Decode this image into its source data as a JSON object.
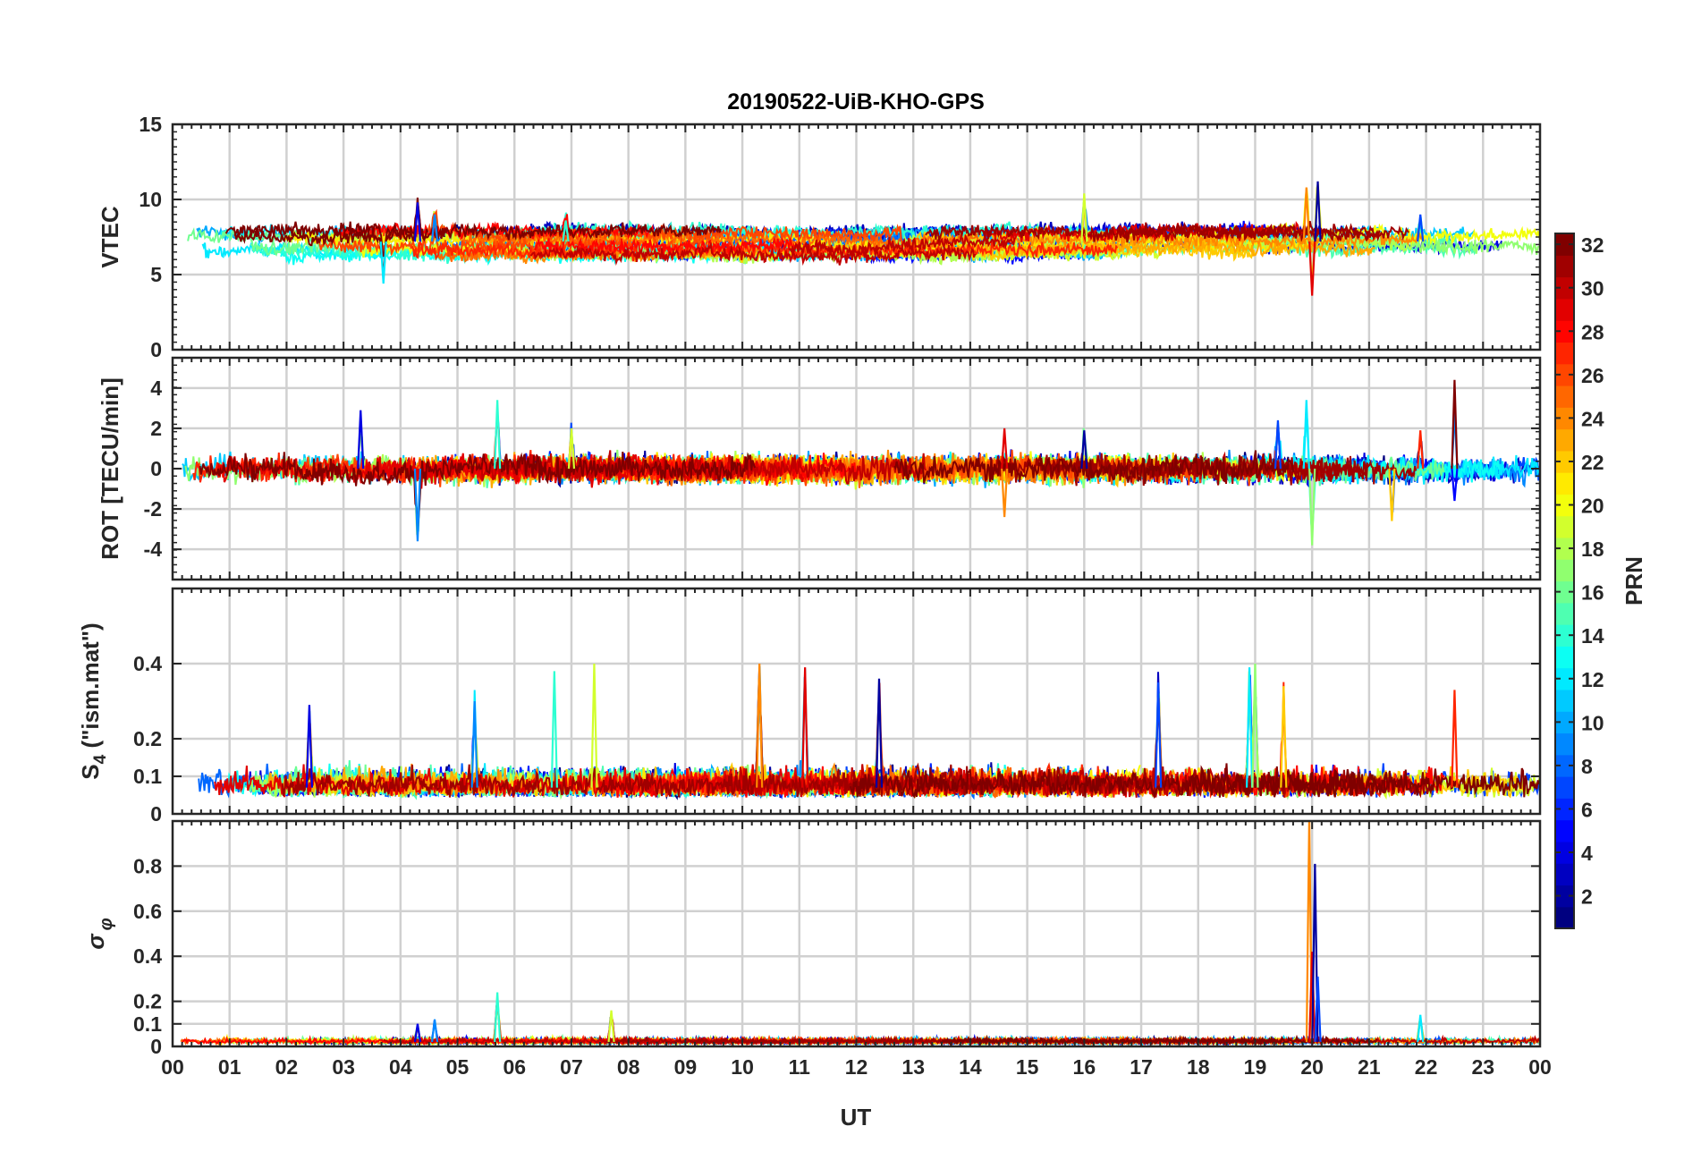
{
  "chart_data": {
    "type": "line",
    "title": "20190522-UiB-KHO-GPS",
    "xlabel": "UT",
    "x_tick_labels": [
      "00",
      "01",
      "02",
      "03",
      "04",
      "05",
      "06",
      "07",
      "08",
      "09",
      "10",
      "11",
      "12",
      "13",
      "14",
      "15",
      "16",
      "17",
      "18",
      "19",
      "20",
      "21",
      "22",
      "23",
      "00"
    ],
    "xlim": [
      0,
      24
    ],
    "grid": true,
    "panels": [
      {
        "id": "vtec",
        "ylabel": "VTEC",
        "ylim": [
          0,
          15
        ],
        "yticks": [
          0,
          5,
          10,
          15
        ],
        "ytick_labels": [
          "0",
          "5",
          "10",
          "15"
        ],
        "minor_ticks_y": true,
        "baseline": 7.2,
        "noise": 0.35,
        "events": [
          {
            "x": 4.3,
            "amp": 2.6
          },
          {
            "x": 4.6,
            "amp": 1.8
          },
          {
            "x": 6.9,
            "amp": 1.4
          },
          {
            "x": 16.0,
            "amp": 3.2
          },
          {
            "x": 19.9,
            "amp": 3.6
          },
          {
            "x": 20.0,
            "amp": -3.6
          },
          {
            "x": 20.1,
            "amp": 4.0
          },
          {
            "x": 21.9,
            "amp": 1.8
          },
          {
            "x": 3.7,
            "amp": -2.8
          }
        ]
      },
      {
        "id": "rot",
        "ylabel": "ROT [TECU/min]",
        "ylim": [
          -5.5,
          5.5
        ],
        "yticks": [
          -4,
          -2,
          0,
          2,
          4
        ],
        "ytick_labels": [
          "-4",
          "-2",
          "0",
          "2",
          "4"
        ],
        "minor_ticks_y": true,
        "baseline": 0,
        "noise": 0.3,
        "events": [
          {
            "x": 3.3,
            "amp": 2.9
          },
          {
            "x": 4.3,
            "amp": -3.6
          },
          {
            "x": 5.7,
            "amp": 3.4
          },
          {
            "x": 7.0,
            "amp": 2.0
          },
          {
            "x": 14.6,
            "amp": -2.4
          },
          {
            "x": 14.6,
            "amp": 2.0
          },
          {
            "x": 16.0,
            "amp": 1.9
          },
          {
            "x": 19.4,
            "amp": 2.4
          },
          {
            "x": 19.9,
            "amp": 3.4
          },
          {
            "x": 20.0,
            "amp": -3.8
          },
          {
            "x": 21.4,
            "amp": -2.6
          },
          {
            "x": 21.9,
            "amp": 1.9
          },
          {
            "x": 22.5,
            "amp": 4.4
          },
          {
            "x": 22.5,
            "amp": -1.6
          }
        ]
      },
      {
        "id": "s4",
        "ylabel_base": "S",
        "ylabel_sub": "4",
        "ylabel_suffix": " (\"ism.mat\")",
        "ylim": [
          0,
          0.6
        ],
        "yticks": [
          0,
          0.1,
          0.2,
          0.4
        ],
        "ytick_labels": [
          "0",
          "0.1",
          "0.2",
          "0.4"
        ],
        "minor_ticks_y": false,
        "baseline": 0.07,
        "noise": 0.025,
        "events": [
          {
            "x": 2.4,
            "amp": 0.22
          },
          {
            "x": 5.3,
            "amp": 0.23
          },
          {
            "x": 6.7,
            "amp": 0.31
          },
          {
            "x": 7.4,
            "amp": 0.33
          },
          {
            "x": 10.3,
            "amp": 0.33
          },
          {
            "x": 11.1,
            "amp": 0.32
          },
          {
            "x": 12.4,
            "amp": 0.29
          },
          {
            "x": 17.3,
            "amp": 0.28
          },
          {
            "x": 18.9,
            "amp": 0.32
          },
          {
            "x": 19.0,
            "amp": 0.33
          },
          {
            "x": 19.5,
            "amp": 0.27
          },
          {
            "x": 22.5,
            "amp": 0.26
          }
        ]
      },
      {
        "id": "sigma",
        "ylabel_greek": "σ",
        "ylabel_sub": "φ",
        "ylim": [
          0,
          1
        ],
        "yticks": [
          0,
          0.1,
          0.2,
          0.4,
          0.6,
          0.8
        ],
        "ytick_labels": [
          "0",
          "0.1",
          "0.2",
          "0.4",
          "0.6",
          "0.8"
        ],
        "minor_ticks_y": false,
        "baseline": 0.02,
        "noise": 0.008,
        "events": [
          {
            "x": 4.3,
            "amp": 0.08
          },
          {
            "x": 4.6,
            "amp": 0.1
          },
          {
            "x": 5.7,
            "amp": 0.22
          },
          {
            "x": 7.7,
            "amp": 0.14
          },
          {
            "x": 19.95,
            "amp": 1.0
          },
          {
            "x": 20.0,
            "amp": 0.4
          },
          {
            "x": 20.05,
            "amp": 0.79
          },
          {
            "x": 20.1,
            "amp": 0.29
          },
          {
            "x": 21.9,
            "amp": 0.12
          }
        ]
      }
    ],
    "series": [
      {
        "name": "PRN 1"
      },
      {
        "name": "PRN 2"
      },
      {
        "name": "PRN 3"
      },
      {
        "name": "PRN 4"
      },
      {
        "name": "PRN 5"
      },
      {
        "name": "PRN 6"
      },
      {
        "name": "PRN 7"
      },
      {
        "name": "PRN 8"
      },
      {
        "name": "PRN 9"
      },
      {
        "name": "PRN 10"
      },
      {
        "name": "PRN 11"
      },
      {
        "name": "PRN 12"
      },
      {
        "name": "PRN 13"
      },
      {
        "name": "PRN 14"
      },
      {
        "name": "PRN 15"
      },
      {
        "name": "PRN 16"
      },
      {
        "name": "PRN 17"
      },
      {
        "name": "PRN 18"
      },
      {
        "name": "PRN 19"
      },
      {
        "name": "PRN 20"
      },
      {
        "name": "PRN 21"
      },
      {
        "name": "PRN 22"
      },
      {
        "name": "PRN 23"
      },
      {
        "name": "PRN 24"
      },
      {
        "name": "PRN 25"
      },
      {
        "name": "PRN 26"
      },
      {
        "name": "PRN 27"
      },
      {
        "name": "PRN 28"
      },
      {
        "name": "PRN 29"
      },
      {
        "name": "PRN 30"
      },
      {
        "name": "PRN 31"
      },
      {
        "name": "PRN 32"
      }
    ],
    "colorbar": {
      "label": "PRN",
      "range": [
        1,
        32
      ],
      "ticks": [
        2,
        4,
        6,
        8,
        10,
        12,
        14,
        16,
        18,
        20,
        22,
        24,
        26,
        28,
        30,
        32
      ],
      "tick_labels": [
        "2",
        "4",
        "6",
        "8",
        "10",
        "12",
        "14",
        "16",
        "18",
        "20",
        "22",
        "24",
        "26",
        "28",
        "30",
        "32"
      ],
      "colormap": "jet",
      "levels": 32
    }
  }
}
